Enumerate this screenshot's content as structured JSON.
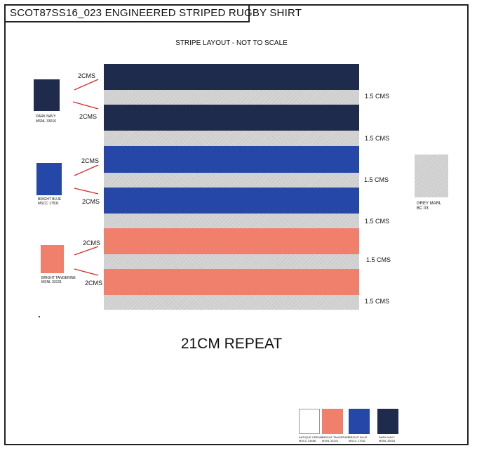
{
  "title": "SCOT87SS16_023  ENGINEERED STRIPED RUGBY SHIRT",
  "subtitle": "STRIPE LAYOUT - NOT TO SCALE",
  "repeat_label": "21CM REPEAT",
  "colors": {
    "dark_navy": "#1e2b4c",
    "bright_blue": "#2447a8",
    "bright_tangerine": "#f0806c",
    "grey_marl": "#d0d0d0",
    "antique_cream": "#ffffff"
  },
  "stripes": [
    {
      "color": "dark_navy",
      "width_label": "2CMS"
    },
    {
      "color": "grey_marl",
      "width_label": "1.5 CMS"
    },
    {
      "color": "dark_navy",
      "width_label": "2CMS"
    },
    {
      "color": "grey_marl",
      "width_label": "1.5 CMS"
    },
    {
      "color": "bright_blue",
      "width_label": "2CMS"
    },
    {
      "color": "grey_marl",
      "width_label": "1.5 CMS"
    },
    {
      "color": "bright_blue",
      "width_label": "2CMS"
    },
    {
      "color": "grey_marl",
      "width_label": "1.5 CMS"
    },
    {
      "color": "bright_tangerine",
      "width_label": "2CMS"
    },
    {
      "color": "grey_marl",
      "width_label": "1.5 CMS"
    },
    {
      "color": "bright_tangerine",
      "width_label": "2CMS"
    },
    {
      "color": "grey_marl",
      "width_label": "1.5 CMS"
    }
  ],
  "swatches": [
    {
      "color": "dark_navy",
      "name": "DARK NAVY",
      "code": "MSNL 33016"
    },
    {
      "color": "bright_blue",
      "name": "BRIGHT BLUE",
      "code": "MSCC 17531"
    },
    {
      "color": "bright_tangerine",
      "name": "BRIGHT TANGERINE",
      "code": "MSNL 33101"
    },
    {
      "color": "grey_marl",
      "name": "GREY MARL",
      "code": "BC 03"
    }
  ],
  "palette_chips": [
    {
      "color": "antique_cream",
      "name": "ANTIQUE CREAM",
      "code": "MSCC 23658"
    },
    {
      "color": "bright_tangerine",
      "name": "BRIGHT TANGERINE",
      "code": "MSNL 33101"
    },
    {
      "color": "bright_blue",
      "name": "BRIGHT BLUE",
      "code": "MSCC 17531"
    },
    {
      "color": "dark_navy",
      "name": "DARK NAVY",
      "code": "MSNL 33016"
    }
  ]
}
